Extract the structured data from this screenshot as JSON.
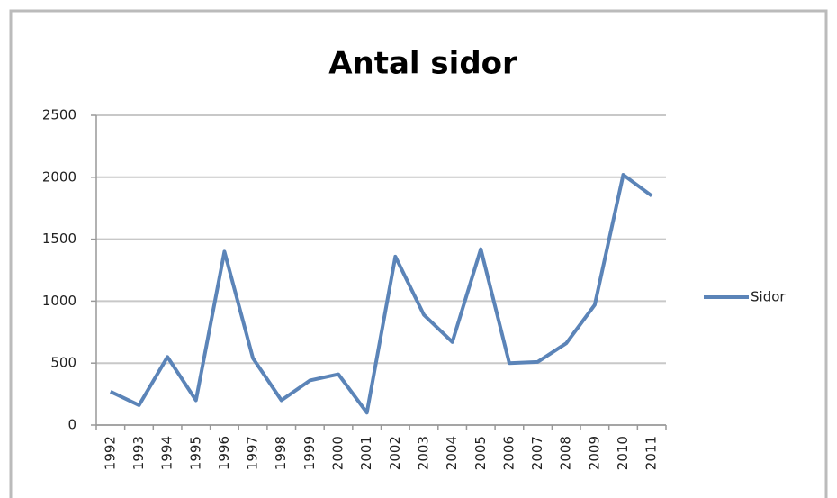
{
  "chart_data": {
    "type": "line",
    "title": "Antal sidor",
    "categories": [
      "1992",
      "1993",
      "1994",
      "1995",
      "1996",
      "1997",
      "1998",
      "1999",
      "2000",
      "2001",
      "2002",
      "2003",
      "2004",
      "2005",
      "2006",
      "2007",
      "2008",
      "2009",
      "2010",
      "2011"
    ],
    "series": [
      {
        "name": "Sidor",
        "color": "#5b84b8",
        "values": [
          270,
          160,
          550,
          200,
          1400,
          540,
          200,
          360,
          410,
          100,
          1360,
          890,
          670,
          1420,
          500,
          510,
          660,
          970,
          2020,
          1850
        ]
      }
    ],
    "ylim": [
      0,
      2500
    ],
    "yticks": [
      0,
      500,
      1000,
      1500,
      2000,
      2500
    ],
    "grid": true,
    "legend": "right"
  }
}
